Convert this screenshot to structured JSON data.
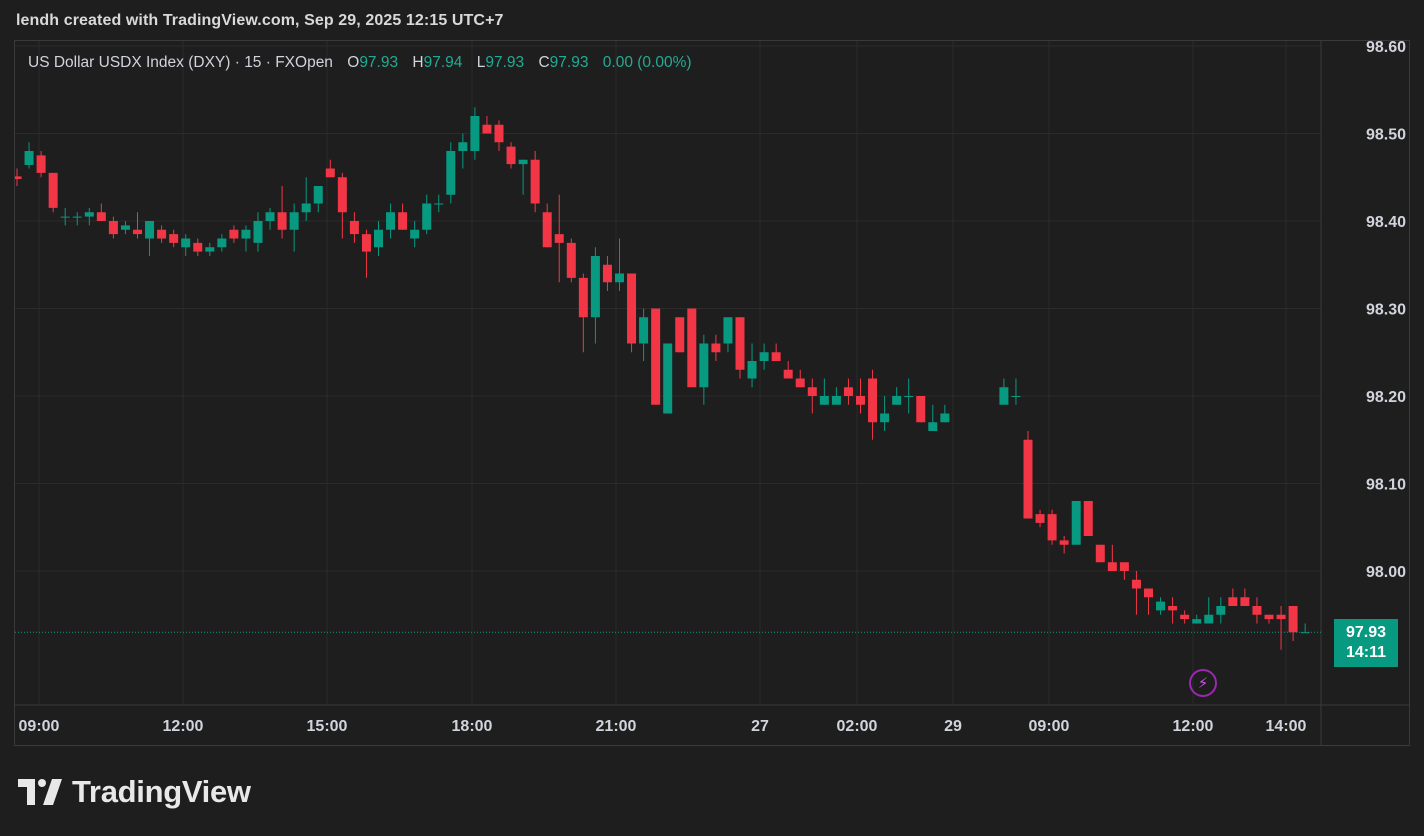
{
  "attribution": "lendh created with TradingView.com, Sep 29, 2025 12:15 UTC+7",
  "legend": {
    "symbol": "US Dollar USDX Index (DXY) · 15 · FXOpen",
    "open_label": "O",
    "open": "97.93",
    "high_label": "H",
    "high": "97.94",
    "low_label": "L",
    "low": "97.93",
    "close_label": "C",
    "close": "97.93",
    "change": "0.00 (0.00%)"
  },
  "last_price": {
    "price": "97.93",
    "countdown": "14:11"
  },
  "logo": {
    "text": "TradingView"
  },
  "colors": {
    "up": "#089981",
    "down": "#f23645",
    "background": "#1e1e1e",
    "grid": "#2b2b2b",
    "accent_bolt": "#9c27b0"
  },
  "icons": {
    "alert": "lightning-icon",
    "logo": "tradingview-logo-icon"
  },
  "chart_data": {
    "type": "candlestick",
    "interval": "15",
    "ylim": [
      97.83,
      98.61
    ],
    "y_ticks": [
      "98.60",
      "98.50",
      "98.40",
      "98.30",
      "98.20",
      "98.10",
      "98.00"
    ],
    "x_ticks": [
      "09:00",
      "12:00",
      "15:00",
      "18:00",
      "21:00",
      "27",
      "02:00",
      "29",
      "09:00",
      "12:00",
      "14:00"
    ],
    "grid": true,
    "session_break_after_index": 77,
    "candles": [
      [
        98.451,
        98.46,
        98.44,
        98.448
      ],
      [
        98.464,
        98.49,
        98.46,
        98.48
      ],
      [
        98.475,
        98.48,
        98.45,
        98.455
      ],
      [
        98.455,
        98.455,
        98.41,
        98.415
      ],
      [
        98.405,
        98.415,
        98.395,
        98.405
      ],
      [
        98.405,
        98.41,
        98.395,
        98.405
      ],
      [
        98.405,
        98.415,
        98.395,
        98.41
      ],
      [
        98.41,
        98.42,
        98.4,
        98.4
      ],
      [
        98.4,
        98.405,
        98.38,
        98.385
      ],
      [
        98.39,
        98.4,
        98.385,
        98.395
      ],
      [
        98.39,
        98.41,
        98.38,
        98.385
      ],
      [
        98.38,
        98.4,
        98.36,
        98.4
      ],
      [
        98.39,
        98.395,
        98.375,
        98.38
      ],
      [
        98.385,
        98.39,
        98.37,
        98.375
      ],
      [
        98.37,
        98.385,
        98.36,
        98.38
      ],
      [
        98.375,
        98.38,
        98.36,
        98.365
      ],
      [
        98.365,
        98.375,
        98.36,
        98.37
      ],
      [
        98.37,
        98.385,
        98.365,
        98.38
      ],
      [
        98.39,
        98.395,
        98.375,
        98.38
      ],
      [
        98.38,
        98.395,
        98.365,
        98.39
      ],
      [
        98.375,
        98.41,
        98.365,
        98.4
      ],
      [
        98.4,
        98.415,
        98.39,
        98.41
      ],
      [
        98.41,
        98.44,
        98.38,
        98.39
      ],
      [
        98.39,
        98.42,
        98.365,
        98.41
      ],
      [
        98.41,
        98.45,
        98.4,
        98.42
      ],
      [
        98.42,
        98.44,
        98.41,
        98.44
      ],
      [
        98.46,
        98.47,
        98.45,
        98.45
      ],
      [
        98.45,
        98.455,
        98.38,
        98.41
      ],
      [
        98.4,
        98.41,
        98.375,
        98.385
      ],
      [
        98.385,
        98.39,
        98.335,
        98.365
      ],
      [
        98.37,
        98.4,
        98.36,
        98.39
      ],
      [
        98.39,
        98.42,
        98.38,
        98.41
      ],
      [
        98.41,
        98.42,
        98.39,
        98.39
      ],
      [
        98.38,
        98.4,
        98.37,
        98.39
      ],
      [
        98.39,
        98.43,
        98.385,
        98.42
      ],
      [
        98.42,
        98.43,
        98.41,
        98.42
      ],
      [
        98.43,
        98.49,
        98.42,
        98.48
      ],
      [
        98.48,
        98.5,
        98.46,
        98.49
      ],
      [
        98.48,
        98.53,
        98.47,
        98.52
      ],
      [
        98.51,
        98.52,
        98.5,
        98.5
      ],
      [
        98.51,
        98.515,
        98.48,
        98.49
      ],
      [
        98.485,
        98.49,
        98.46,
        98.465
      ],
      [
        98.465,
        98.47,
        98.43,
        98.47
      ],
      [
        98.47,
        98.48,
        98.41,
        98.42
      ],
      [
        98.41,
        98.42,
        98.37,
        98.37
      ],
      [
        98.385,
        98.43,
        98.33,
        98.375
      ],
      [
        98.375,
        98.38,
        98.33,
        98.335
      ],
      [
        98.335,
        98.34,
        98.25,
        98.29
      ],
      [
        98.29,
        98.37,
        98.26,
        98.36
      ],
      [
        98.35,
        98.36,
        98.32,
        98.33
      ],
      [
        98.33,
        98.38,
        98.32,
        98.34
      ],
      [
        98.34,
        98.34,
        98.25,
        98.26
      ],
      [
        98.26,
        98.3,
        98.24,
        98.29
      ],
      [
        98.3,
        98.3,
        98.19,
        98.19
      ],
      [
        98.18,
        98.26,
        98.18,
        98.26
      ],
      [
        98.29,
        98.29,
        98.25,
        98.25
      ],
      [
        98.3,
        98.3,
        98.21,
        98.21
      ],
      [
        98.21,
        98.27,
        98.19,
        98.26
      ],
      [
        98.26,
        98.27,
        98.24,
        98.25
      ],
      [
        98.26,
        98.29,
        98.25,
        98.29
      ],
      [
        98.29,
        98.29,
        98.22,
        98.23
      ],
      [
        98.22,
        98.26,
        98.21,
        98.24
      ],
      [
        98.24,
        98.26,
        98.23,
        98.25
      ],
      [
        98.25,
        98.26,
        98.24,
        98.24
      ],
      [
        98.23,
        98.24,
        98.22,
        98.22
      ],
      [
        98.22,
        98.23,
        98.21,
        98.21
      ],
      [
        98.21,
        98.22,
        98.18,
        98.2
      ],
      [
        98.19,
        98.22,
        98.19,
        98.2
      ],
      [
        98.19,
        98.21,
        98.19,
        98.2
      ],
      [
        98.21,
        98.22,
        98.19,
        98.2
      ],
      [
        98.2,
        98.22,
        98.18,
        98.19
      ],
      [
        98.22,
        98.23,
        98.15,
        98.17
      ],
      [
        98.17,
        98.2,
        98.16,
        98.18
      ],
      [
        98.19,
        98.21,
        98.19,
        98.2
      ],
      [
        98.2,
        98.22,
        98.18,
        98.2
      ],
      [
        98.2,
        98.2,
        98.17,
        98.17
      ],
      [
        98.16,
        98.19,
        98.16,
        98.17
      ],
      [
        98.17,
        98.19,
        98.17,
        98.18
      ],
      [
        98.19,
        98.22,
        98.19,
        98.21
      ],
      [
        98.2,
        98.22,
        98.19,
        98.2
      ],
      [
        98.15,
        98.16,
        98.06,
        98.06
      ],
      [
        98.065,
        98.07,
        98.05,
        98.055
      ],
      [
        98.065,
        98.07,
        98.03,
        98.035
      ],
      [
        98.035,
        98.04,
        98.02,
        98.03
      ],
      [
        98.03,
        98.08,
        98.03,
        98.08
      ],
      [
        98.08,
        98.08,
        98.04,
        98.04
      ],
      [
        98.03,
        98.03,
        98.01,
        98.01
      ],
      [
        98.01,
        98.03,
        98.0,
        98.0
      ],
      [
        98.01,
        98.01,
        97.99,
        98.0
      ],
      [
        97.99,
        98.0,
        97.95,
        97.98
      ],
      [
        97.98,
        97.98,
        97.95,
        97.97
      ],
      [
        97.955,
        97.97,
        97.95,
        97.965
      ],
      [
        97.96,
        97.97,
        97.94,
        97.955
      ],
      [
        97.95,
        97.955,
        97.94,
        97.945
      ],
      [
        97.94,
        97.95,
        97.94,
        97.945
      ],
      [
        97.94,
        97.97,
        97.94,
        97.95
      ],
      [
        97.95,
        97.97,
        97.94,
        97.96
      ],
      [
        97.97,
        97.98,
        97.96,
        97.96
      ],
      [
        97.97,
        97.98,
        97.96,
        97.96
      ],
      [
        97.96,
        97.97,
        97.94,
        97.95
      ],
      [
        97.95,
        97.95,
        97.94,
        97.945
      ],
      [
        97.95,
        97.96,
        97.91,
        97.945
      ],
      [
        97.96,
        97.96,
        97.92,
        97.93
      ],
      [
        97.93,
        97.94,
        97.93,
        97.93
      ]
    ]
  }
}
